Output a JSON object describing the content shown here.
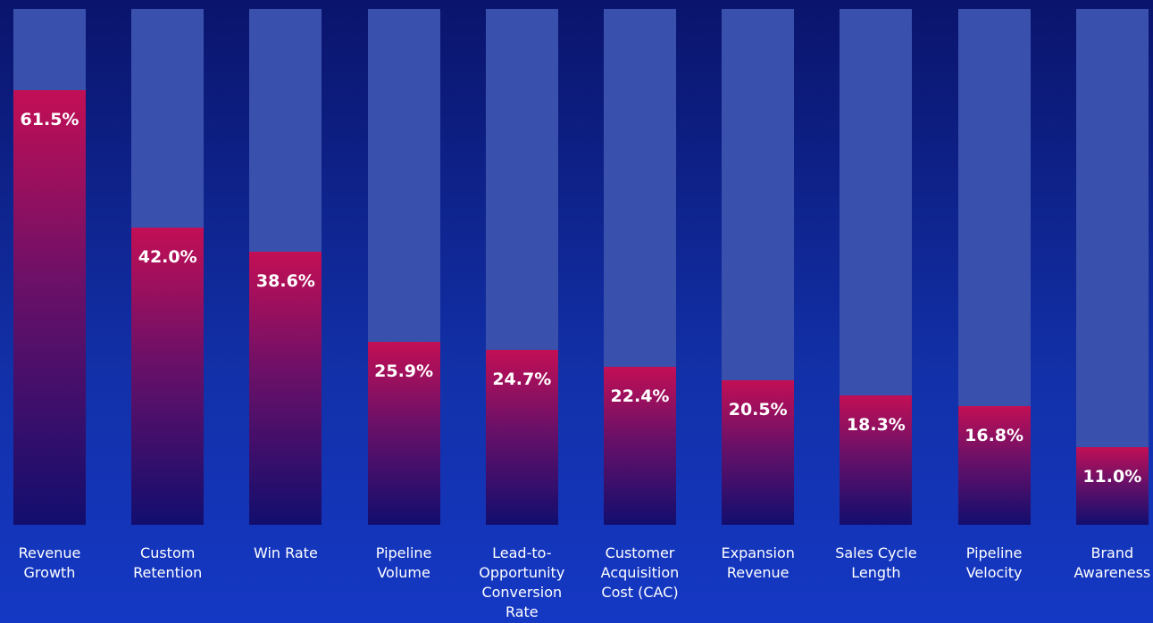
{
  "chart_data": {
    "type": "bar",
    "categories": [
      "Revenue Growth",
      "Custom Retention",
      "Win Rate",
      "Pipeline Volume",
      "Lead-to-Opportunity Conversion Rate",
      "Customer Acquisition Cost (CAC)",
      "Expansion Revenue",
      "Sales Cycle Length",
      "Pipeline Velocity",
      "Brand Awareness"
    ],
    "values": [
      61.5,
      42.0,
      38.6,
      25.9,
      24.7,
      22.4,
      20.5,
      18.3,
      16.8,
      11.0
    ],
    "value_labels": [
      "61.5%",
      "42.0%",
      "38.6%",
      "25.9%",
      "24.7%",
      "22.4%",
      "20.5%",
      "18.3%",
      "16.8%",
      "11.0%"
    ],
    "color": "#c20f55",
    "track_color": "#3a50ad",
    "ylim": [
      0,
      73
    ]
  }
}
